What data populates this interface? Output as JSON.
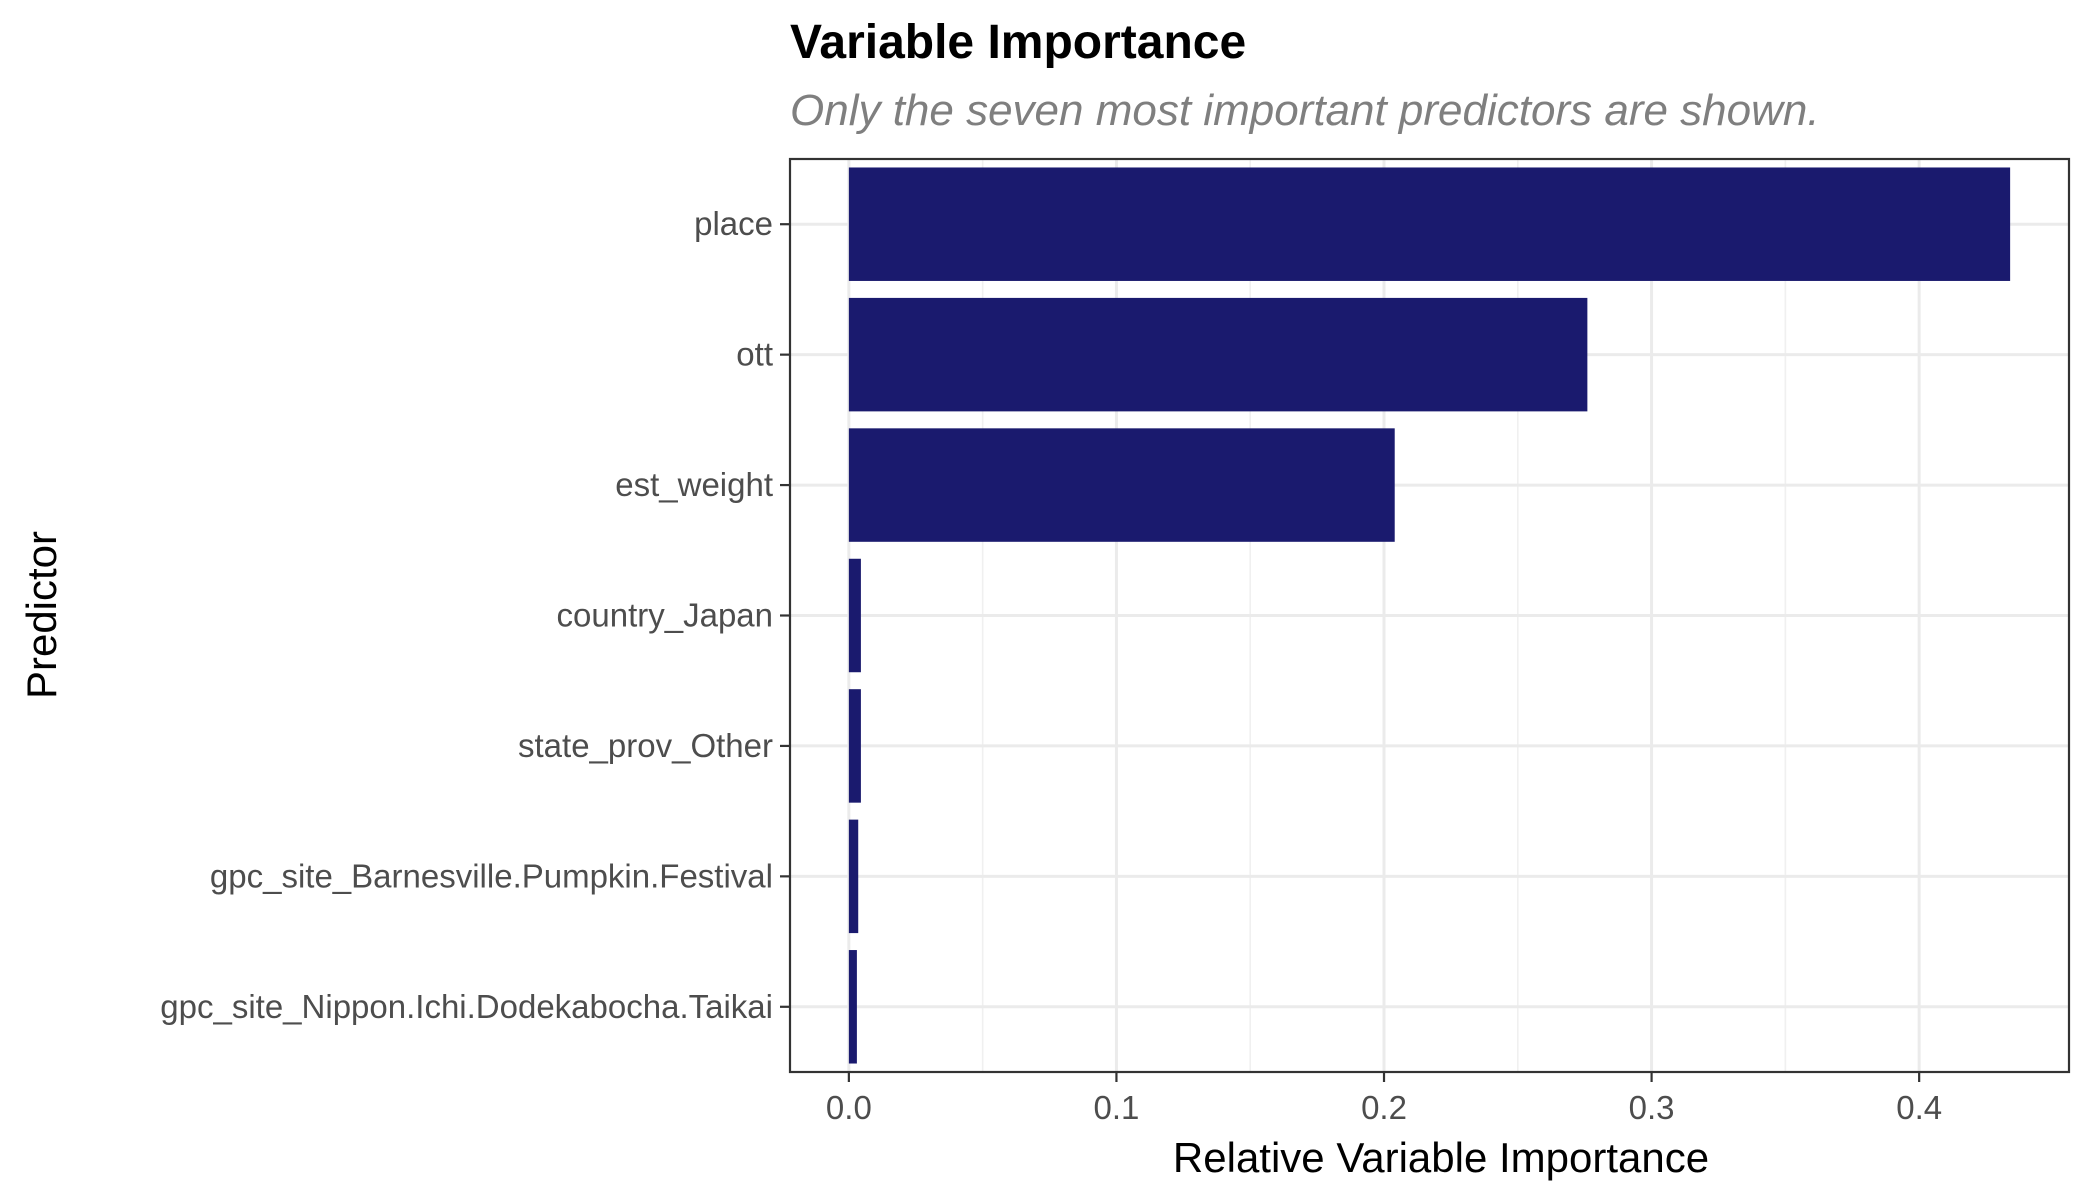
{
  "chart_data": {
    "type": "bar",
    "orientation": "horizontal",
    "title": "Variable Importance",
    "subtitle": "Only the seven most important predictors are shown.",
    "xlabel": "Relative Variable Importance",
    "ylabel": "Predictor",
    "categories": [
      "place",
      "ott",
      "est_weight",
      "country_Japan",
      "state_prov_Other",
      "gpc_site_Barnesville.Pumpkin.Festival",
      "gpc_site_Nippon.Ichi.Dodekabocha.Taikai"
    ],
    "values": [
      0.434,
      0.276,
      0.204,
      0.0045,
      0.0045,
      0.0035,
      0.003
    ],
    "xlim": [
      -0.022,
      0.456
    ],
    "xticks": [
      0.0,
      0.1,
      0.2,
      0.3,
      0.4
    ],
    "xtick_labels": [
      "0.0",
      "0.1",
      "0.2",
      "0.3",
      "0.4"
    ],
    "grid": true,
    "bar_color": "#1a1a6e"
  }
}
